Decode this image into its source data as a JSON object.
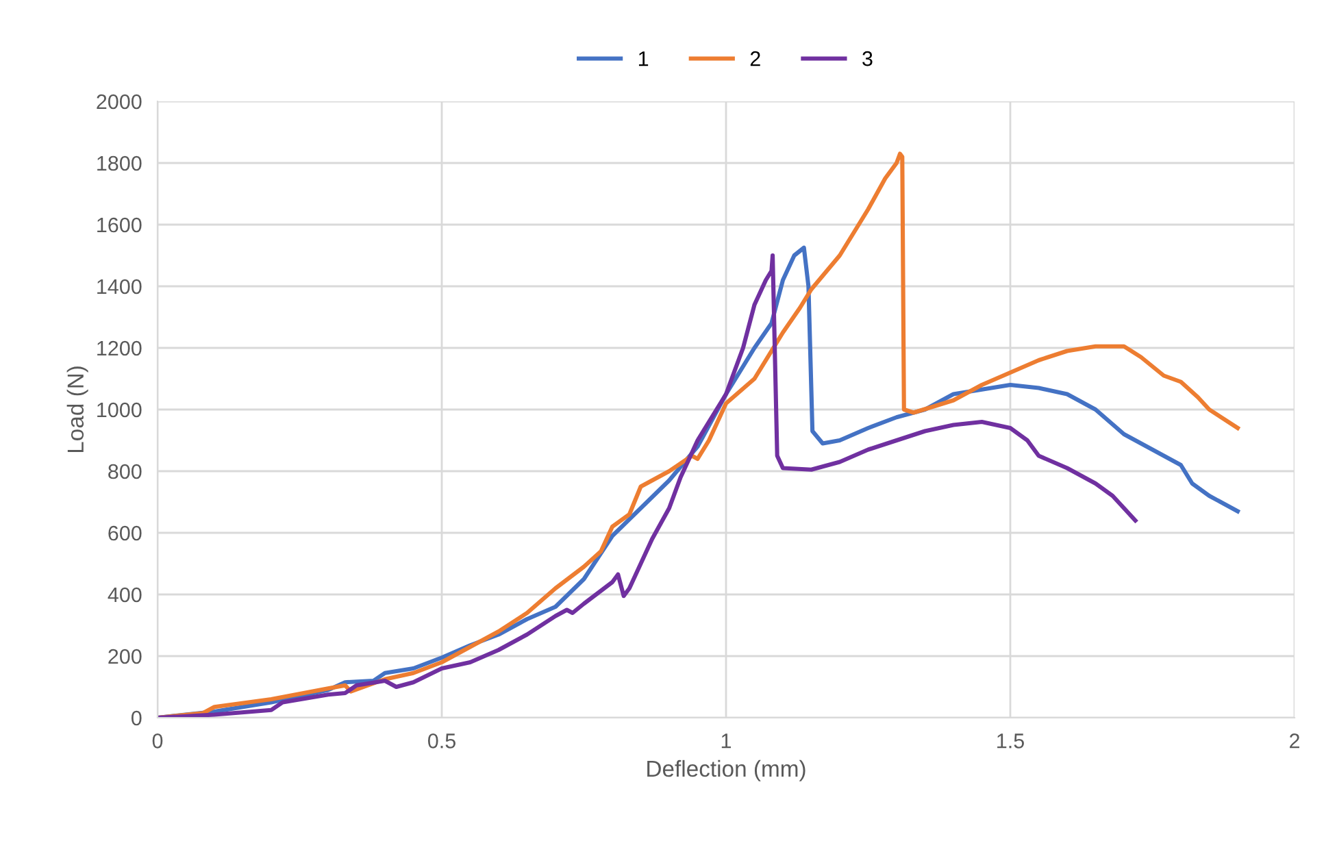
{
  "chart_data": {
    "type": "line",
    "xlabel": "Deflection (mm)",
    "ylabel": "Load (N)",
    "xlim": [
      0,
      2
    ],
    "xticks": [
      0,
      0.5,
      1,
      1.5,
      2
    ],
    "ylim": [
      0,
      2000
    ],
    "yticks": [
      0,
      200,
      400,
      600,
      800,
      1000,
      1200,
      1400,
      1600,
      1800,
      2000
    ],
    "grid": true,
    "legend": "top",
    "marker": "none",
    "line_style": "solid",
    "series": [
      {
        "name": "1",
        "color": "#4472c4",
        "x": [
          0,
          0.1,
          0.2,
          0.3,
          0.33,
          0.38,
          0.4,
          0.45,
          0.5,
          0.55,
          0.6,
          0.65,
          0.7,
          0.75,
          0.8,
          0.85,
          0.9,
          0.95,
          1.0,
          1.05,
          1.08,
          1.1,
          1.12,
          1.137,
          1.145,
          1.152,
          1.17,
          1.2,
          1.25,
          1.3,
          1.35,
          1.4,
          1.5,
          1.55,
          1.6,
          1.65,
          1.7,
          1.75,
          1.8,
          1.82,
          1.85,
          1.9
        ],
        "values": [
          0,
          20,
          50,
          90,
          115,
          120,
          145,
          160,
          195,
          235,
          270,
          320,
          360,
          450,
          590,
          680,
          770,
          880,
          1050,
          1200,
          1280,
          1420,
          1500,
          1525,
          1400,
          930,
          890,
          900,
          940,
          975,
          1000,
          1050,
          1080,
          1070,
          1050,
          1000,
          920,
          870,
          820,
          760,
          720,
          670
        ]
      },
      {
        "name": "2",
        "color": "#ed7d31",
        "x": [
          0,
          0.08,
          0.1,
          0.2,
          0.3,
          0.33,
          0.34,
          0.4,
          0.45,
          0.5,
          0.55,
          0.6,
          0.65,
          0.7,
          0.75,
          0.78,
          0.8,
          0.83,
          0.85,
          0.9,
          0.94,
          0.95,
          0.97,
          1.0,
          1.05,
          1.1,
          1.13,
          1.15,
          1.2,
          1.25,
          1.28,
          1.3,
          1.306,
          1.31,
          1.313,
          1.33,
          1.4,
          1.45,
          1.5,
          1.55,
          1.6,
          1.65,
          1.7,
          1.73,
          1.77,
          1.8,
          1.83,
          1.85,
          1.9
        ],
        "values": [
          0,
          15,
          35,
          60,
          95,
          105,
          85,
          125,
          145,
          180,
          230,
          280,
          340,
          420,
          490,
          540,
          620,
          660,
          750,
          800,
          850,
          840,
          900,
          1020,
          1100,
          1250,
          1330,
          1390,
          1500,
          1650,
          1750,
          1800,
          1830,
          1820,
          1000,
          990,
          1030,
          1080,
          1120,
          1160,
          1190,
          1205,
          1205,
          1170,
          1110,
          1090,
          1040,
          1000,
          940
        ]
      },
      {
        "name": "3",
        "color": "#7030a0",
        "x": [
          0,
          0.1,
          0.2,
          0.22,
          0.3,
          0.33,
          0.35,
          0.4,
          0.42,
          0.45,
          0.5,
          0.55,
          0.6,
          0.65,
          0.7,
          0.72,
          0.73,
          0.75,
          0.8,
          0.81,
          0.82,
          0.83,
          0.85,
          0.87,
          0.9,
          0.92,
          0.95,
          1.0,
          1.03,
          1.05,
          1.07,
          1.08,
          1.082,
          1.09,
          1.1,
          1.15,
          1.2,
          1.25,
          1.3,
          1.35,
          1.4,
          1.45,
          1.5,
          1.53,
          1.55,
          1.6,
          1.65,
          1.68,
          1.7,
          1.72
        ],
        "values": [
          0,
          10,
          25,
          50,
          75,
          80,
          105,
          120,
          100,
          115,
          160,
          180,
          220,
          270,
          330,
          350,
          340,
          370,
          440,
          465,
          395,
          420,
          500,
          580,
          680,
          780,
          900,
          1050,
          1200,
          1340,
          1420,
          1450,
          1500,
          850,
          810,
          805,
          830,
          870,
          900,
          930,
          950,
          960,
          940,
          900,
          850,
          810,
          760,
          720,
          680,
          640
        ]
      }
    ]
  }
}
